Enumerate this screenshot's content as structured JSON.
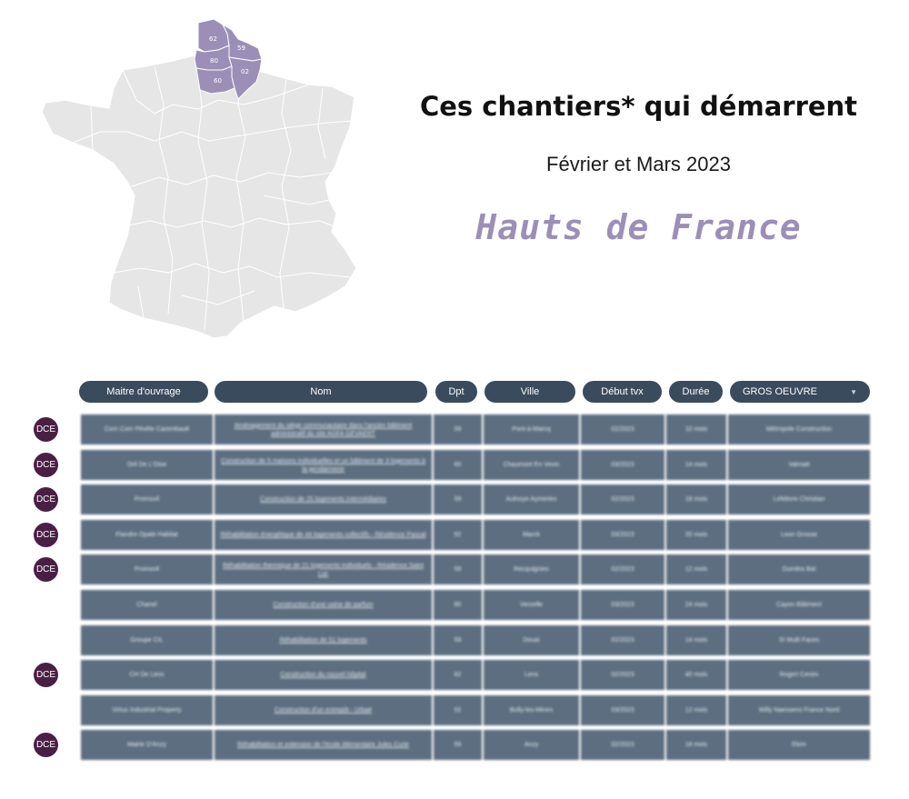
{
  "colors": {
    "region_accent": "#9b8fb8",
    "map_base": "#e6e6e6",
    "header_pill": "#3a4b5d",
    "row_bg": "#5c6e80",
    "badge": "#4a1f45"
  },
  "header": {
    "title": "Ces chantiers* qui démarrent",
    "subtitle": "Février et Mars 2023",
    "region": "Hauts de France"
  },
  "map": {
    "departments": [
      {
        "code": "62",
        "label": "62"
      },
      {
        "code": "59",
        "label": "59"
      },
      {
        "code": "80",
        "label": "80"
      },
      {
        "code": "02",
        "label": "02"
      },
      {
        "code": "60",
        "label": "60"
      }
    ]
  },
  "table": {
    "columns": [
      "Maitre d'ouvrage",
      "Nom",
      "Dpt",
      "Ville",
      "Début tvx",
      "Durée"
    ],
    "filter": {
      "selected": "GROS OEUVRE",
      "icon": "chevron-down-icon"
    },
    "badge_label": "DCE",
    "rows": [
      {
        "dce": true,
        "cells": [
          "Com Com Pévèle Carembault",
          "Aménagement du siège communautaire dans l'ancien bâtiment administratif du site AGFA GEVAERT",
          "59",
          "Pont-à-Marcq",
          "02/2023",
          "10 mois",
          "Métropole Construction"
        ]
      },
      {
        "dce": true,
        "cells": [
          "Oril De L'Oise",
          "Construction de 5 maisons individuelles et un bâtiment de 3 logements à la gendarmerie",
          "60",
          "Chaumont En Vexin",
          "03/2023",
          "14 mois",
          "Valmatt"
        ]
      },
      {
        "dce": true,
        "cells": [
          "Promovil",
          "Construction de 25 logements intermédiaires",
          "59",
          "Aulnoye Aymeries",
          "02/2023",
          "18 mois",
          "Lefebvre Christian"
        ]
      },
      {
        "dce": true,
        "cells": [
          "Flandre Opale Habitat",
          "Réhabilitation énergétique de 44 logements collectifs - Résidence Pascal",
          "62",
          "Marck",
          "03/2023",
          "20 mois",
          "Leon Grosse"
        ]
      },
      {
        "dce": true,
        "cells": [
          "Promovil",
          "Réhabilitation thermique de 21 logements individuels - Résidence Saint Luc",
          "59",
          "Recquignies",
          "02/2023",
          "12 mois",
          "Dumitra Bat"
        ]
      },
      {
        "dce": false,
        "cells": [
          "Chanel",
          "Construction d'une usine de parfum",
          "80",
          "Verzelle",
          "03/2023",
          "24 mois",
          "Cayon Bâtiment"
        ]
      },
      {
        "dce": false,
        "cells": [
          "Groupe CIL",
          "Réhabilitation de 51 logements",
          "59",
          "Douai",
          "02/2023",
          "14 mois",
          "SI Multi Faces"
        ]
      },
      {
        "dce": true,
        "cells": [
          "CH De Lens",
          "Construction du nouvel hôpital",
          "62",
          "Lens",
          "02/2023",
          "40 mois",
          "Rogeri Cenim"
        ]
      },
      {
        "dce": false,
        "cells": [
          "Virtus Industrial Property",
          "Construction d'un entrepôt - Urbaé",
          "02",
          "Bully-les-Mines",
          "03/2023",
          "12 mois",
          "Willy Naessens France Nord"
        ]
      },
      {
        "dce": true,
        "cells": [
          "Mairie D'Anzy",
          "Réhabilitation et extension de l'école élémentaire Jules Curie",
          "59",
          "Anzy",
          "02/2023",
          "18 mois",
          "Ekim"
        ]
      }
    ]
  }
}
